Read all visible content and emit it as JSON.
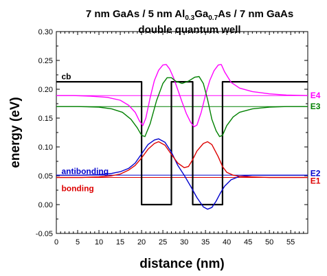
{
  "chart_data": {
    "type": "line",
    "title_line1_parts": [
      "7 nm GaAs / 5 nm Al",
      "0.3",
      "Ga",
      "0.7",
      "As / 7 nm GaAs"
    ],
    "title_line2": "double quantum well",
    "xlabel": "distance (nm)",
    "ylabel": "energy (eV)",
    "xlim": [
      0,
      59
    ],
    "ylim": [
      -0.05,
      0.3
    ],
    "xticks": [
      "0",
      "5",
      "10",
      "15",
      "20",
      "25",
      "30",
      "35",
      "40",
      "45",
      "50",
      "55"
    ],
    "yticks": [
      "-0.05",
      "0.00",
      "0.05",
      "0.10",
      "0.15",
      "0.20",
      "0.25",
      "0.30"
    ],
    "grid": false,
    "energy_levels": [
      {
        "name": "E4",
        "value": 0.189,
        "color": "#ff00ff"
      },
      {
        "name": "E3",
        "value": 0.17,
        "color": "#008000"
      },
      {
        "name": "E2",
        "value": 0.051,
        "color": "#0000cc"
      },
      {
        "name": "E1",
        "value": 0.047,
        "color": "#dd0000"
      }
    ],
    "series": [
      {
        "name": "cb",
        "color": "#000000",
        "x": [
          0,
          20,
          20,
          27,
          27,
          32,
          32,
          39,
          39,
          59
        ],
        "y": [
          0.213,
          0.213,
          0.0,
          0.0,
          0.213,
          0.213,
          0.0,
          0.0,
          0.213,
          0.213
        ]
      },
      {
        "name": "E4",
        "color": "#ff00ff",
        "x": [
          0,
          4,
          8,
          12,
          15,
          17,
          18.5,
          19.5,
          20.3,
          21,
          22,
          23,
          24,
          25,
          25.8,
          26.6,
          27.5,
          28.5,
          29.5,
          30.5,
          31.5,
          32.3,
          33,
          34,
          35,
          36,
          37,
          38,
          38.7,
          39.5,
          41,
          43,
          46,
          50,
          54,
          59
        ],
        "y": [
          0.189,
          0.189,
          0.188,
          0.186,
          0.181,
          0.172,
          0.16,
          0.145,
          0.137,
          0.15,
          0.185,
          0.215,
          0.233,
          0.242,
          0.243,
          0.235,
          0.22,
          0.199,
          0.178,
          0.158,
          0.143,
          0.135,
          0.138,
          0.16,
          0.19,
          0.215,
          0.232,
          0.242,
          0.243,
          0.23,
          0.212,
          0.202,
          0.196,
          0.192,
          0.19,
          0.189
        ]
      },
      {
        "name": "E3",
        "color": "#008000",
        "x": [
          0,
          5,
          10,
          13,
          15.5,
          17.5,
          19,
          20,
          20.8,
          22,
          23.5,
          25,
          26,
          27,
          28,
          29.5,
          31,
          32.5,
          33.5,
          34.5,
          35.5,
          36.5,
          37.5,
          38.3,
          39,
          40,
          41.5,
          43,
          46,
          50,
          54,
          59
        ],
        "y": [
          0.17,
          0.17,
          0.169,
          0.166,
          0.16,
          0.148,
          0.133,
          0.12,
          0.118,
          0.14,
          0.18,
          0.21,
          0.22,
          0.22,
          0.214,
          0.21,
          0.214,
          0.221,
          0.222,
          0.21,
          0.182,
          0.148,
          0.128,
          0.118,
          0.12,
          0.137,
          0.152,
          0.16,
          0.166,
          0.169,
          0.17,
          0.17
        ]
      },
      {
        "name": "E2",
        "color": "#0000cc",
        "x": [
          0,
          6,
          10,
          13,
          15,
          17,
          18.5,
          20,
          21.5,
          23,
          24,
          25.5,
          27,
          28.5,
          30,
          31.5,
          33,
          34.5,
          35.5,
          36.5,
          37.5,
          38.5,
          39.5,
          41,
          43,
          46,
          50,
          55,
          59
        ],
        "y": [
          0.051,
          0.051,
          0.052,
          0.054,
          0.057,
          0.063,
          0.072,
          0.088,
          0.104,
          0.112,
          0.114,
          0.108,
          0.091,
          0.068,
          0.051,
          0.032,
          0.012,
          -0.004,
          -0.008,
          -0.005,
          0.006,
          0.02,
          0.032,
          0.043,
          0.049,
          0.051,
          0.051,
          0.051,
          0.051
        ]
      },
      {
        "name": "E1",
        "color": "#dd0000",
        "x": [
          0,
          6,
          10,
          13,
          15,
          17,
          18.5,
          20,
          21.5,
          23,
          24,
          25.5,
          27,
          28.5,
          30,
          31,
          32,
          33,
          34.5,
          35.5,
          36.5,
          38,
          39,
          40,
          41.5,
          43,
          46,
          50,
          55,
          59
        ],
        "y": [
          0.047,
          0.047,
          0.048,
          0.05,
          0.053,
          0.06,
          0.068,
          0.081,
          0.096,
          0.106,
          0.109,
          0.103,
          0.087,
          0.072,
          0.064,
          0.066,
          0.078,
          0.093,
          0.106,
          0.109,
          0.104,
          0.083,
          0.066,
          0.056,
          0.051,
          0.049,
          0.048,
          0.047,
          0.047,
          0.047
        ]
      }
    ],
    "annotations": [
      {
        "text": "cb",
        "color": "#000000",
        "x": 1.2,
        "y": 0.222
      },
      {
        "text": "E4",
        "color": "#ff00ff",
        "x": 59.6,
        "y": 0.189
      },
      {
        "text": "E3",
        "color": "#008000",
        "x": 59.6,
        "y": 0.17
      },
      {
        "text": "E2",
        "color": "#0000cc",
        "x": 59.6,
        "y": 0.054
      },
      {
        "text": "E1",
        "color": "#dd0000",
        "x": 59.6,
        "y": 0.041
      },
      {
        "text": "antibonding",
        "color": "#0000cc",
        "x": 1.2,
        "y": 0.058
      },
      {
        "text": "bonding",
        "color": "#dd0000",
        "x": 1.2,
        "y": 0.028
      }
    ]
  }
}
